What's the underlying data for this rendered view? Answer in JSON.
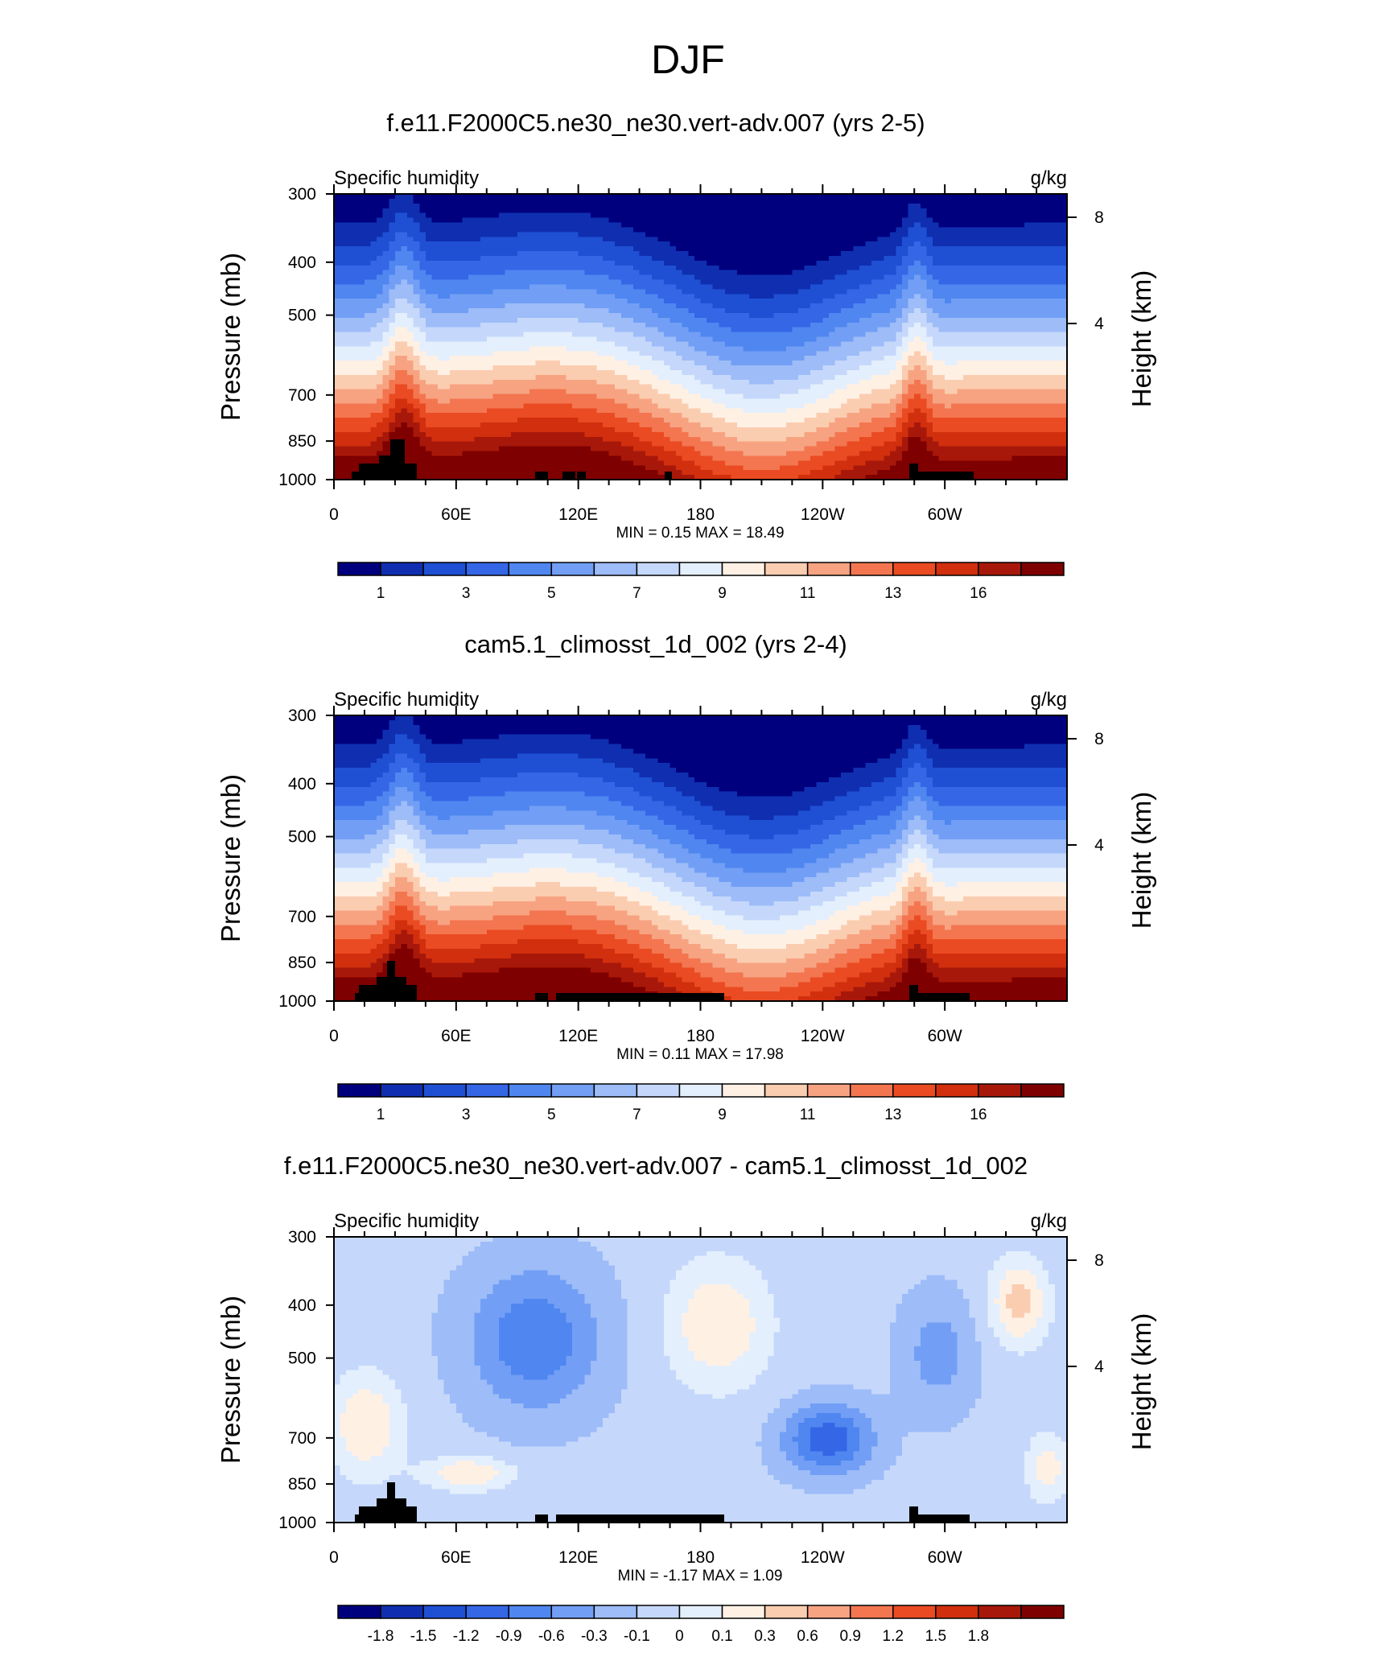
{
  "main_title": "DJF",
  "panels": [
    {
      "title": "f.e11.F2000C5.ne30_ne30.vert-adv.007 (yrs 2-5)",
      "left_label": "Specific humidity",
      "right_label": "g/kg",
      "min_max": "MIN =   0.15  MAX =  18.49"
    },
    {
      "title": "cam5.1_climosst_1d_002 (yrs 2-4)",
      "left_label": "Specific humidity",
      "right_label": "g/kg",
      "min_max": "MIN =   0.11  MAX =  17.98"
    },
    {
      "title": "f.e11.F2000C5.ne30_ne30.vert-adv.007 - cam5.1_climosst_1d_002",
      "left_label": "Specific humidity",
      "right_label": "g/kg",
      "min_max": "MIN =  -1.17  MAX =   1.09"
    }
  ],
  "chart_data": [
    {
      "type": "heatmap",
      "title": "f.e11.F2000C5.ne30_ne30.vert-adv.007 (yrs 2-5)",
      "xlabel": "",
      "ylabel": "Pressure (mb)",
      "y2label": "Height (km)",
      "x_ticks": [
        "0",
        "60E",
        "120E",
        "180",
        "120W",
        "60W"
      ],
      "x_range_deg": [
        0,
        360
      ],
      "y_ticks": [
        300,
        400,
        500,
        700,
        850,
        1000
      ],
      "y_range": [
        300,
        1000
      ],
      "y_scale": "log",
      "y2_ticks": [
        "8",
        "4"
      ],
      "units": "g/kg",
      "min": 0.15,
      "max": 18.49,
      "colorbar_labels": [
        "1",
        "3",
        "5",
        "7",
        "9",
        "11",
        "13",
        "16"
      ],
      "colorbar_colors": [
        "#00007f",
        "#0f2fb0",
        "#1f50d4",
        "#3466e6",
        "#4f86f0",
        "#729ff5",
        "#9dbcf8",
        "#c5d8fb",
        "#e4effd",
        "#fff0e4",
        "#fbcdb0",
        "#f7a382",
        "#f37650",
        "#ea4b22",
        "#d12f0e",
        "#a8180a",
        "#7e0000"
      ]
    },
    {
      "type": "heatmap",
      "title": "cam5.1_climosst_1d_002 (yrs 2-4)",
      "xlabel": "",
      "ylabel": "Pressure (mb)",
      "y2label": "Height (km)",
      "x_ticks": [
        "0",
        "60E",
        "120E",
        "180",
        "120W",
        "60W"
      ],
      "x_range_deg": [
        0,
        360
      ],
      "y_ticks": [
        300,
        400,
        500,
        700,
        850,
        1000
      ],
      "y_range": [
        300,
        1000
      ],
      "y_scale": "log",
      "y2_ticks": [
        "8",
        "4"
      ],
      "units": "g/kg",
      "min": 0.11,
      "max": 17.98,
      "colorbar_labels": [
        "1",
        "3",
        "5",
        "7",
        "9",
        "11",
        "13",
        "16"
      ],
      "colorbar_colors": [
        "#00007f",
        "#0f2fb0",
        "#1f50d4",
        "#3466e6",
        "#4f86f0",
        "#729ff5",
        "#9dbcf8",
        "#c5d8fb",
        "#e4effd",
        "#fff0e4",
        "#fbcdb0",
        "#f7a382",
        "#f37650",
        "#ea4b22",
        "#d12f0e",
        "#a8180a",
        "#7e0000"
      ]
    },
    {
      "type": "heatmap",
      "title": "f.e11.F2000C5.ne30_ne30.vert-adv.007 - cam5.1_climosst_1d_002",
      "xlabel": "",
      "ylabel": "Pressure (mb)",
      "y2label": "Height (km)",
      "x_ticks": [
        "0",
        "60E",
        "120E",
        "180",
        "120W",
        "60W"
      ],
      "x_range_deg": [
        0,
        360
      ],
      "y_ticks": [
        300,
        400,
        500,
        700,
        850,
        1000
      ],
      "y_range": [
        300,
        1000
      ],
      "y_scale": "log",
      "y2_ticks": [
        "8",
        "4"
      ],
      "units": "g/kg",
      "min": -1.17,
      "max": 1.09,
      "colorbar_labels": [
        "-1.8",
        "-1.5",
        "-1.2",
        "-0.9",
        "-0.6",
        "-0.3",
        "-0.1",
        "0",
        "0.1",
        "0.3",
        "0.6",
        "0.9",
        "1.2",
        "1.5",
        "1.8"
      ],
      "colorbar_colors": [
        "#00007f",
        "#0f2fb0",
        "#1f50d4",
        "#3466e6",
        "#4f86f0",
        "#729ff5",
        "#9dbcf8",
        "#c5d8fb",
        "#e4effd",
        "#fff0e4",
        "#fbcdb0",
        "#f7a382",
        "#f37650",
        "#ea4b22",
        "#d12f0e",
        "#a8180a",
        "#7e0000"
      ]
    }
  ]
}
